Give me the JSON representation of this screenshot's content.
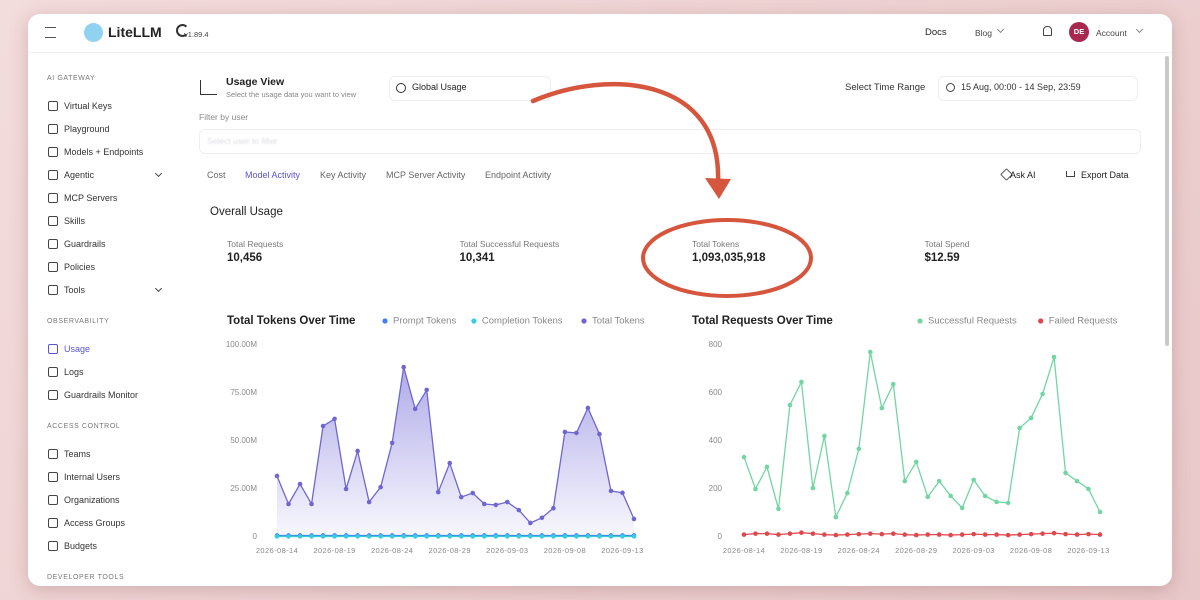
{
  "topbar": {
    "brand": "LiteLLM",
    "version": "v1.89.4",
    "docs": "Docs",
    "blog": "Blog",
    "avatar": "DE",
    "account": "Account"
  },
  "sidebar": [
    {
      "title": "AI GATEWAY",
      "items": [
        {
          "label": "Virtual Keys"
        },
        {
          "label": "Playground"
        },
        {
          "label": "Models + Endpoints"
        },
        {
          "label": "Agentic",
          "expandable": true
        },
        {
          "label": "MCP Servers"
        },
        {
          "label": "Skills"
        },
        {
          "label": "Guardrails"
        },
        {
          "label": "Policies"
        },
        {
          "label": "Tools",
          "expandable": true
        }
      ]
    },
    {
      "title": "OBSERVABILITY",
      "items": [
        {
          "label": "Usage",
          "active": true
        },
        {
          "label": "Logs"
        },
        {
          "label": "Guardrails Monitor"
        }
      ]
    },
    {
      "title": "ACCESS CONTROL",
      "items": [
        {
          "label": "Teams"
        },
        {
          "label": "Internal Users"
        },
        {
          "label": "Organizations"
        },
        {
          "label": "Access Groups"
        },
        {
          "label": "Budgets"
        }
      ]
    },
    {
      "title": "DEVELOPER TOOLS",
      "items": []
    }
  ],
  "usage": {
    "title": "Usage View",
    "subtitle": "Select the usage data you want to view",
    "scope": "Global Usage",
    "time_range_label": "Select Time Range",
    "time_range": "15 Aug, 00:00 - 14 Sep, 23:59",
    "filter_label": "Filter by user",
    "filter_placeholder": "Select user to filter"
  },
  "tabs": [
    "Cost",
    "Model Activity",
    "Key Activity",
    "MCP Server Activity",
    "Endpoint Activity"
  ],
  "active_tab": 1,
  "actions": {
    "ask": "Ask AI",
    "export": "Export Data"
  },
  "overall": {
    "title": "Overall Usage",
    "stats": [
      {
        "label": "Total Requests",
        "value": "10,456"
      },
      {
        "label": "Total Successful Requests",
        "value": "10,341"
      },
      {
        "label": "Total Tokens",
        "value": "1,093,035,918"
      },
      {
        "label": "Total Spend",
        "value": "$12.59"
      }
    ]
  },
  "chart_data": [
    {
      "type": "line",
      "title": "Total Tokens Over Time",
      "categories": [
        "2026-08-14",
        null,
        null,
        null,
        null,
        "2026-08-19",
        null,
        null,
        null,
        null,
        "2026-08-24",
        null,
        null,
        null,
        null,
        "2026-08-29",
        null,
        null,
        null,
        null,
        "2026-09-03",
        null,
        null,
        null,
        null,
        "2026-09-08",
        null,
        null,
        null,
        null,
        "2026-09-13",
        null
      ],
      "series": [
        {
          "name": "Prompt Tokens",
          "color": "#3b82f6",
          "values": [
            0.8,
            0.8,
            0.8,
            0.8,
            0.8,
            0.8,
            0.8,
            0.8,
            0.8,
            0.8,
            0.8,
            0.8,
            0.8,
            0.8,
            0.8,
            0.8,
            0.8,
            0.8,
            0.8,
            0.8,
            0.8,
            0.8,
            0.8,
            0.8,
            0.8,
            0.8,
            0.8,
            0.8,
            0.8,
            0.8,
            0.8,
            0.8
          ]
        },
        {
          "name": "Completion Tokens",
          "color": "#38cde0",
          "values": [
            0.3,
            0.3,
            0.3,
            0.3,
            0.3,
            0.3,
            0.3,
            0.3,
            0.3,
            0.3,
            0.3,
            0.3,
            0.3,
            0.3,
            0.3,
            0.3,
            0.3,
            0.3,
            0.3,
            0.3,
            0.3,
            0.3,
            0.3,
            0.3,
            0.3,
            0.3,
            0.3,
            0.3,
            0.3,
            0.3,
            0.3,
            0.3
          ]
        },
        {
          "name": "Total Tokens",
          "color": "#6f67d0",
          "area": true,
          "values": [
            31.8,
            17.2,
            27.6,
            17.2,
            57.8,
            61.5,
            25,
            44.8,
            18.2,
            26,
            49,
            88.5,
            66.7,
            76.6,
            23.4,
            38.5,
            20.8,
            22.9,
            17.2,
            16.7,
            18.2,
            14,
            7.3,
            10,
            15,
            54.7,
            54.2,
            67.2,
            53.6,
            24,
            23,
            9.4
          ]
        }
      ],
      "ylim": [
        0,
        100
      ],
      "yticks": [
        0,
        {
          "value": 25,
          "label": "25.00M"
        },
        {
          "value": 50,
          "label": "50.00M"
        },
        {
          "value": 75,
          "label": "75.00M"
        },
        {
          "value": 100,
          "label": "100.00M"
        }
      ],
      "grid": false
    },
    {
      "type": "line",
      "title": "Total Requests Over Time",
      "categories": [
        "2026-08-14",
        null,
        null,
        null,
        null,
        "2026-08-19",
        null,
        null,
        null,
        null,
        "2026-08-24",
        null,
        null,
        null,
        null,
        "2026-08-29",
        null,
        null,
        null,
        null,
        "2026-09-03",
        null,
        null,
        null,
        null,
        "2026-09-08",
        null,
        null,
        null,
        null,
        "2026-09-13",
        null
      ],
      "series": [
        {
          "name": "Successful Requests",
          "color": "#72d6a2",
          "values": [
            333,
            200,
            292,
            117,
            550,
            646,
            204,
            421,
            83,
            183,
            367,
            771,
            537,
            637,
            233,
            313,
            167,
            233,
            171,
            121,
            238,
            171,
            146,
            142,
            454,
            496,
            596,
            750,
            267,
            233,
            200,
            104
          ]
        },
        {
          "name": "Failed Requests",
          "color": "#e0474c",
          "values": [
            10,
            14,
            14,
            10,
            14,
            18,
            14,
            10,
            8,
            10,
            12,
            14,
            12,
            14,
            10,
            8,
            10,
            10,
            8,
            10,
            12,
            10,
            10,
            8,
            10,
            12,
            14,
            16,
            12,
            10,
            12,
            10
          ]
        }
      ],
      "ylim": [
        0,
        800
      ],
      "yticks": [
        0,
        200,
        400,
        600,
        800
      ],
      "grid": false
    }
  ]
}
